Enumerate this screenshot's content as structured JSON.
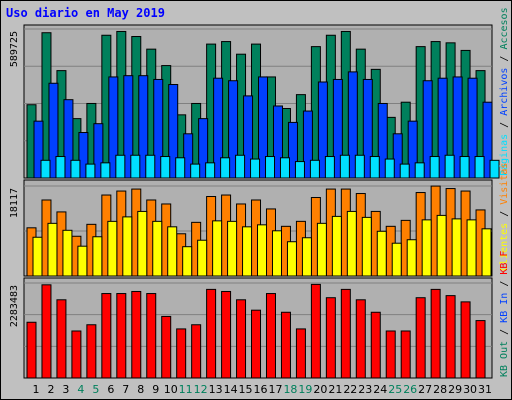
{
  "title": "Uso diario en May 2019",
  "colors": {
    "background": "#c0c0c0",
    "panel": "#b0b0b0",
    "title": "#0000ff",
    "weekend_label": "#00805c",
    "weekday_label": "#000000",
    "accesos": "#00805c",
    "archivos": "#0040ff",
    "paginas": "#00e0ff",
    "visitas": "#ff8000",
    "clientes": "#ffff00",
    "kb": "#ff0000"
  },
  "chart_data": [
    {
      "type": "bar",
      "name": "hits-files-pages",
      "categories": [
        "1",
        "2",
        "3",
        "4",
        "5",
        "6",
        "7",
        "8",
        "9",
        "10",
        "11",
        "12",
        "13",
        "14",
        "15",
        "16",
        "17",
        "18",
        "19",
        "20",
        "21",
        "22",
        "23",
        "24",
        "25",
        "26",
        "27",
        "28",
        "29",
        "30",
        "31"
      ],
      "weekend_days": [
        4,
        5,
        11,
        12,
        18,
        19,
        25,
        26
      ],
      "ymax_label": "589725",
      "ylim": [
        0,
        589725
      ],
      "series": [
        {
          "name": "Accesos",
          "values": [
            290000,
            575000,
            425000,
            235000,
            295000,
            565000,
            580000,
            560000,
            510000,
            445000,
            250000,
            295000,
            530000,
            540000,
            490000,
            530000,
            400000,
            275000,
            330000,
            520000,
            565000,
            580000,
            510000,
            430000,
            240000,
            300000,
            520000,
            540000,
            535000,
            505000,
            425000
          ]
        },
        {
          "name": "Archivos",
          "values": [
            225000,
            375000,
            310000,
            180000,
            215000,
            400000,
            405000,
            405000,
            390000,
            370000,
            175000,
            235000,
            395000,
            385000,
            325000,
            400000,
            285000,
            220000,
            265000,
            380000,
            390000,
            420000,
            390000,
            295000,
            175000,
            225000,
            385000,
            395000,
            400000,
            395000,
            300000
          ]
        },
        {
          "name": "Páginas",
          "values": [
            70000,
            85000,
            70000,
            55000,
            60000,
            90000,
            90000,
            90000,
            85000,
            80000,
            55000,
            60000,
            80000,
            90000,
            75000,
            85000,
            80000,
            65000,
            70000,
            85000,
            90000,
            90000,
            85000,
            75000,
            55000,
            60000,
            85000,
            90000,
            85000,
            85000,
            70000
          ]
        }
      ]
    },
    {
      "type": "bar",
      "name": "visits-sites",
      "categories": [
        "1",
        "2",
        "3",
        "4",
        "5",
        "6",
        "7",
        "8",
        "9",
        "10",
        "11",
        "12",
        "13",
        "14",
        "15",
        "16",
        "17",
        "18",
        "19",
        "20",
        "21",
        "22",
        "23",
        "24",
        "25",
        "26",
        "27",
        "28",
        "29",
        "30",
        "31"
      ],
      "ymax_label": "18117",
      "ylim": [
        0,
        18117
      ],
      "series": [
        {
          "name": "Visitas",
          "values": [
            9700,
            15300,
            12900,
            8000,
            10400,
            16300,
            17100,
            17500,
            15300,
            14500,
            8500,
            10800,
            16000,
            16300,
            14500,
            15300,
            13500,
            10000,
            11000,
            15800,
            17500,
            17500,
            16600,
            13000,
            10000,
            11200,
            16800,
            18100,
            17600,
            17100,
            13300
          ]
        },
        {
          "name": "Clientes",
          "values": [
            7800,
            10600,
            9200,
            6000,
            7900,
            11000,
            11900,
            13000,
            11000,
            9900,
            5900,
            7200,
            11100,
            11000,
            9900,
            10300,
            9100,
            6900,
            7700,
            10600,
            12000,
            13000,
            11800,
            9000,
            6600,
            7300,
            11300,
            12200,
            11500,
            11300,
            9500
          ]
        }
      ]
    },
    {
      "type": "bar",
      "name": "kbytes",
      "categories": [
        "1",
        "2",
        "3",
        "4",
        "5",
        "6",
        "7",
        "8",
        "9",
        "10",
        "11",
        "12",
        "13",
        "14",
        "15",
        "16",
        "17",
        "18",
        "19",
        "20",
        "21",
        "22",
        "23",
        "24",
        "25",
        "26",
        "27",
        "28",
        "29",
        "30",
        "31"
      ],
      "ymax_label": "2283483",
      "ylim": [
        0,
        2283483
      ],
      "series": [
        {
          "name": "KB F",
          "values": [
            1340000,
            2240000,
            1880000,
            1130000,
            1280000,
            2030000,
            2030000,
            2080000,
            2030000,
            1480000,
            1180000,
            1280000,
            2130000,
            2080000,
            1880000,
            1630000,
            2030000,
            1580000,
            1180000,
            2250000,
            1930000,
            2130000,
            1880000,
            1580000,
            1130000,
            1130000,
            1930000,
            2130000,
            1980000,
            1830000,
            1380000
          ]
        }
      ]
    }
  ],
  "legend": {
    "top": {
      "accesos": "Accesos",
      "archivos": "Archivos",
      "paginas": "Páginas",
      "sep": " / "
    },
    "middle": {
      "visitas": "Visitas",
      "clientes": "Clientes",
      "sep": " / "
    },
    "bottom": {
      "kbf": "KB F",
      "kbin": "KB In",
      "kbout": "KB Out",
      "sep": " / "
    }
  }
}
